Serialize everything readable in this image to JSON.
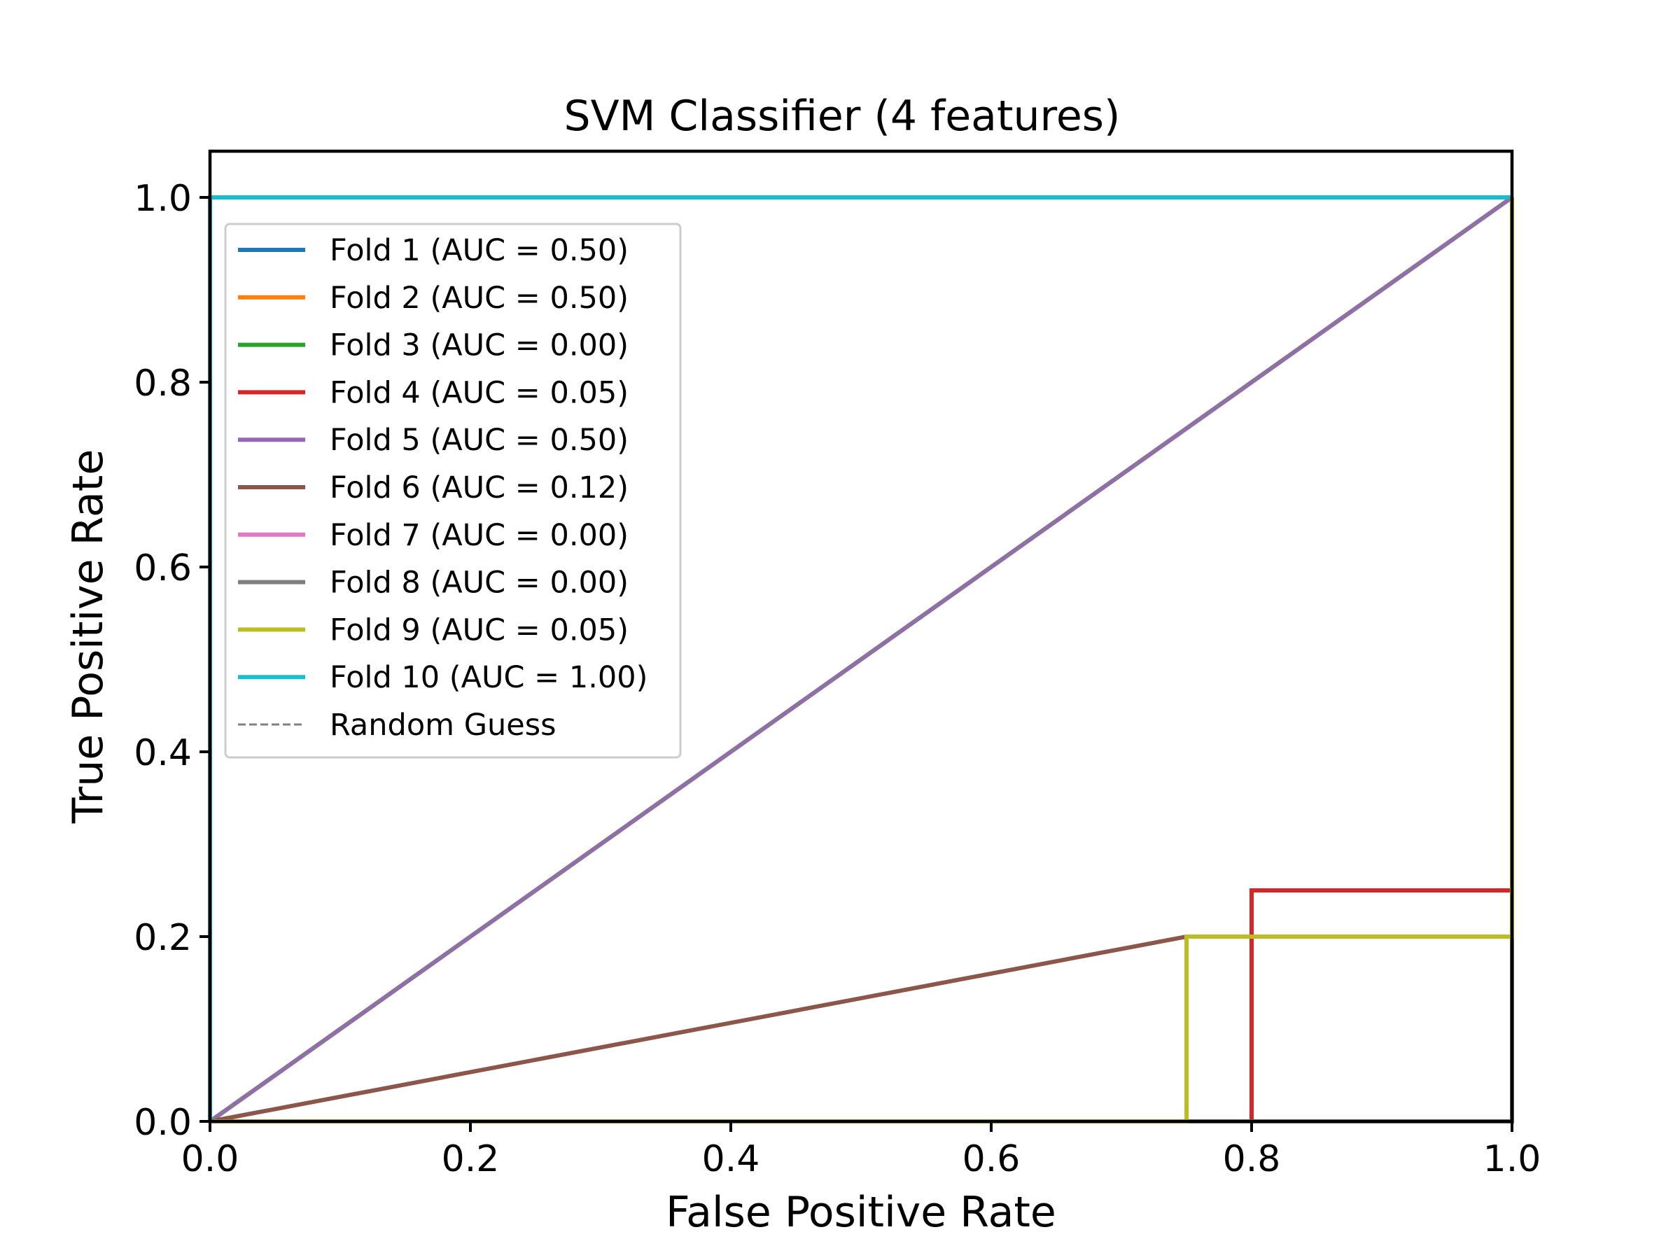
{
  "chart_data": {
    "type": "line",
    "title": "SVM Classifier (4 features)",
    "xlabel": "False Positive Rate",
    "ylabel": "True Positive Rate",
    "xlim": [
      0.0,
      1.0
    ],
    "ylim": [
      0.0,
      1.05
    ],
    "xticks": [
      0.0,
      0.2,
      0.4,
      0.6,
      0.8,
      1.0
    ],
    "yticks": [
      0.0,
      0.2,
      0.4,
      0.6,
      0.8,
      1.0
    ],
    "xtick_labels": [
      "0.0",
      "0.2",
      "0.4",
      "0.6",
      "0.8",
      "1.0"
    ],
    "ytick_labels": [
      "0.0",
      "0.2",
      "0.4",
      "0.6",
      "0.8",
      "1.0"
    ],
    "grid": false,
    "legend_position": "upper-left",
    "series": [
      {
        "name": "Fold 1 (AUC = 0.50)",
        "color": "#1f77b4",
        "x": [
          0.0,
          1.0
        ],
        "y": [
          0.0,
          1.0
        ]
      },
      {
        "name": "Fold 2 (AUC = 0.50)",
        "color": "#ff7f0e",
        "x": [
          0.0,
          1.0
        ],
        "y": [
          0.0,
          1.0
        ]
      },
      {
        "name": "Fold 3 (AUC = 0.00)",
        "color": "#2ca02c",
        "x": [
          0.0,
          1.0,
          1.0
        ],
        "y": [
          0.0,
          0.0,
          1.0
        ]
      },
      {
        "name": "Fold 4 (AUC = 0.05)",
        "color": "#d62728",
        "x": [
          0.0,
          0.8,
          0.8,
          1.0,
          1.0
        ],
        "y": [
          0.0,
          0.0,
          0.25,
          0.25,
          1.0
        ]
      },
      {
        "name": "Fold 5 (AUC = 0.50)",
        "color": "#9467bd",
        "x": [
          0.0,
          1.0
        ],
        "y": [
          0.0,
          1.0
        ]
      },
      {
        "name": "Fold 6 (AUC = 0.12)",
        "color": "#8c564b",
        "x": [
          0.0,
          0.75,
          1.0,
          1.0
        ],
        "y": [
          0.0,
          0.2,
          0.2,
          1.0
        ]
      },
      {
        "name": "Fold 7 (AUC = 0.00)",
        "color": "#e377c2",
        "x": [
          0.0,
          1.0,
          1.0
        ],
        "y": [
          0.0,
          0.0,
          1.0
        ]
      },
      {
        "name": "Fold 8 (AUC = 0.00)",
        "color": "#7f7f7f",
        "x": [
          0.0,
          1.0,
          1.0
        ],
        "y": [
          0.0,
          0.0,
          1.0
        ]
      },
      {
        "name": "Fold 9 (AUC = 0.05)",
        "color": "#bcbd22",
        "x": [
          0.0,
          0.75,
          0.75,
          1.0,
          1.0
        ],
        "y": [
          0.0,
          0.0,
          0.2,
          0.2,
          1.0
        ]
      },
      {
        "name": "Fold 10 (AUC = 1.00)",
        "color": "#17becf",
        "x": [
          0.0,
          0.0,
          1.0
        ],
        "y": [
          0.0,
          1.0,
          1.0
        ]
      },
      {
        "name": "Random Guess",
        "color": "#808080",
        "dashed": true,
        "x": [
          0.0,
          1.0
        ],
        "y": [
          0.0,
          1.0
        ]
      }
    ]
  }
}
